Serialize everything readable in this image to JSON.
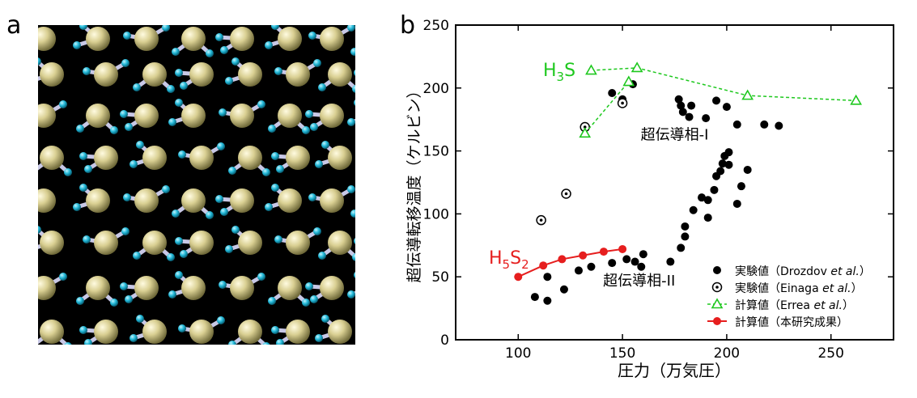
{
  "panels": {
    "a": {
      "label": "a"
    },
    "b": {
      "label": "b"
    }
  },
  "colors": {
    "background": "#000000",
    "sulfur_atom": "#cfc58a",
    "hydrogen_atom": "#1fb5d6",
    "bond": "#c8c8e6",
    "calc_errea": "#1ec81e",
    "calc_this_work": "#e61e1e"
  },
  "chart_data": {
    "type": "scatter",
    "title": "",
    "xlabel": "圧力（万気圧）",
    "ylabel": "超伝導転移温度（ケルビン）",
    "xlim": [
      70,
      280
    ],
    "ylim": [
      0,
      250
    ],
    "x_ticks": [
      100,
      150,
      200,
      250
    ],
    "y_ticks": [
      0,
      50,
      100,
      150,
      200,
      250
    ],
    "grid": false,
    "legend_position": "bottom-right",
    "series": [
      {
        "name": "実験値（Drozdov et al.）",
        "legend_parts": [
          "実験値（Drozdov ",
          "et al.",
          "）"
        ],
        "marker": "filled-circle",
        "color": "#000000",
        "points": [
          [
            108,
            34
          ],
          [
            114,
            31
          ],
          [
            114,
            50
          ],
          [
            122,
            40
          ],
          [
            129,
            55
          ],
          [
            135,
            58
          ],
          [
            145,
            61
          ],
          [
            152,
            64
          ],
          [
            156,
            62
          ],
          [
            159,
            58
          ],
          [
            160,
            68
          ],
          [
            173,
            62
          ],
          [
            178,
            73
          ],
          [
            180,
            82
          ],
          [
            180,
            90
          ],
          [
            184,
            103
          ],
          [
            188,
            113
          ],
          [
            191,
            97
          ],
          [
            191,
            111
          ],
          [
            194,
            119
          ],
          [
            195,
            130
          ],
          [
            198,
            140
          ],
          [
            199,
            146
          ],
          [
            201,
            149
          ],
          [
            197,
            134
          ],
          [
            201,
            139
          ],
          [
            205,
            108
          ],
          [
            207,
            122
          ],
          [
            210,
            135
          ],
          [
            177,
            191
          ],
          [
            178,
            186
          ],
          [
            179,
            181
          ],
          [
            183,
            186
          ],
          [
            182,
            177
          ],
          [
            190,
            176
          ],
          [
            195,
            190
          ],
          [
            200,
            185
          ],
          [
            205,
            171
          ],
          [
            218,
            171
          ],
          [
            225,
            170
          ],
          [
            145,
            196
          ],
          [
            150,
            191
          ],
          [
            155,
            203
          ]
        ]
      },
      {
        "name": "実験値（Einaga et al.）",
        "legend_parts": [
          "実験値（Einaga ",
          "et al.",
          "）"
        ],
        "marker": "dotted-circle",
        "color": "#000000",
        "points": [
          [
            111,
            95
          ],
          [
            123,
            116
          ],
          [
            132,
            169
          ],
          [
            150,
            188
          ]
        ]
      },
      {
        "name": "計算値（Errea et al.）",
        "legend_parts": [
          "計算値（Errea ",
          "et al.",
          "）"
        ],
        "marker": "triangle",
        "color": "#1ec81e",
        "lines": [
          [
            [
              132,
              164
            ],
            [
              153,
              205
            ]
          ],
          [
            [
              135,
              214
            ],
            [
              157,
              216
            ],
            [
              210,
              194
            ],
            [
              262,
              190
            ]
          ]
        ]
      },
      {
        "name": "計算値（本研究成果）",
        "legend_parts": [
          "計算値（本研究成果）"
        ],
        "marker": "filled-circle",
        "color": "#e61e1e",
        "points": [
          [
            100,
            50
          ],
          [
            112,
            59
          ],
          [
            121,
            64
          ],
          [
            131,
            67
          ],
          [
            141,
            70
          ],
          [
            150,
            72
          ]
        ]
      }
    ],
    "annotations": [
      {
        "text": "超伝導相-I",
        "x": 175,
        "y": 159
      },
      {
        "text": "超伝導相-II",
        "x": 158,
        "y": 43
      }
    ],
    "compound_labels": {
      "h3s": {
        "h": "H",
        "sub1": "3",
        "s": "S"
      },
      "h5s2": {
        "h": "H",
        "sub1": "5",
        "s": "S",
        "sub2": "2"
      }
    }
  }
}
